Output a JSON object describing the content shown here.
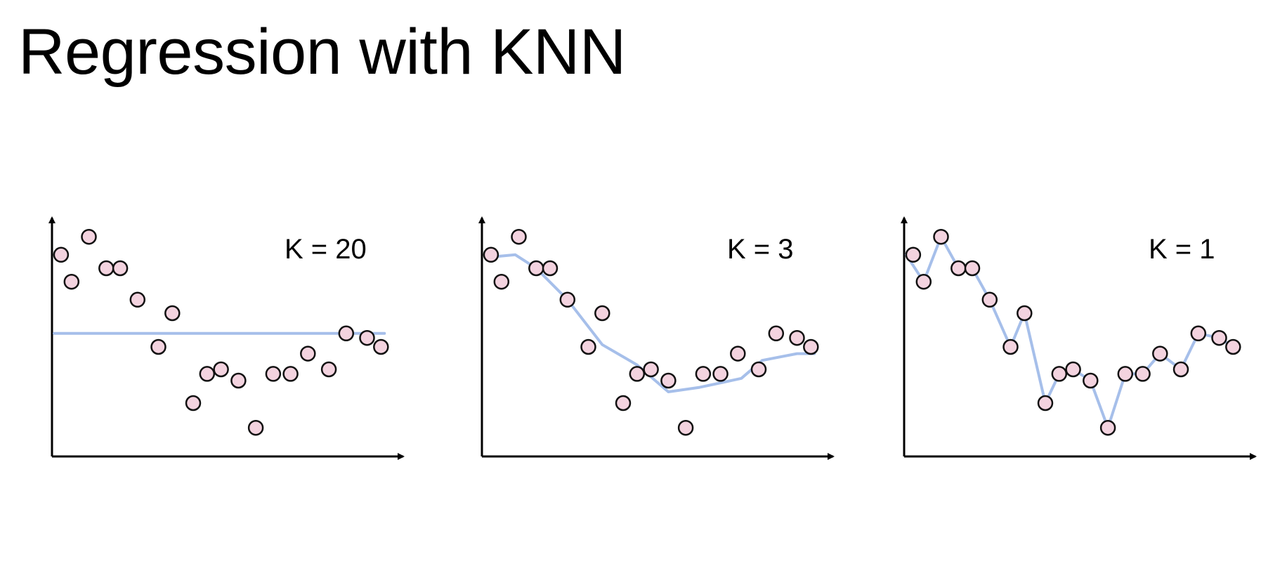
{
  "title": "Regression with KNN",
  "colors": {
    "point_fill": "#f3d3df",
    "point_stroke": "#111111",
    "fit_line": "#a6bfea",
    "axis": "#000000"
  },
  "chart_data": [
    {
      "type": "scatter",
      "title": "",
      "annotation": "K = 20",
      "k": 20,
      "xlim": [
        0,
        100
      ],
      "ylim": [
        0,
        100
      ],
      "points": [
        [
          2,
          86
        ],
        [
          5,
          74
        ],
        [
          10,
          94
        ],
        [
          15,
          80
        ],
        [
          19,
          80
        ],
        [
          24,
          66
        ],
        [
          30,
          45
        ],
        [
          34,
          60
        ],
        [
          40,
          20
        ],
        [
          44,
          33
        ],
        [
          48,
          35
        ],
        [
          53,
          30
        ],
        [
          58,
          9
        ],
        [
          63,
          33
        ],
        [
          68,
          33
        ],
        [
          73,
          42
        ],
        [
          79,
          35
        ],
        [
          84,
          51
        ],
        [
          90,
          49
        ],
        [
          94,
          45
        ]
      ],
      "fit": [
        [
          0,
          51
        ],
        [
          95,
          51
        ]
      ]
    },
    {
      "type": "scatter",
      "title": "",
      "annotation": "K = 3",
      "k": 3,
      "xlim": [
        0,
        100
      ],
      "ylim": [
        0,
        100
      ],
      "points": [
        [
          2,
          86
        ],
        [
          5,
          74
        ],
        [
          10,
          94
        ],
        [
          15,
          80
        ],
        [
          19,
          80
        ],
        [
          24,
          66
        ],
        [
          30,
          45
        ],
        [
          34,
          60
        ],
        [
          40,
          20
        ],
        [
          44,
          33
        ],
        [
          48,
          35
        ],
        [
          53,
          30
        ],
        [
          58,
          9
        ],
        [
          63,
          33
        ],
        [
          68,
          33
        ],
        [
          73,
          42
        ],
        [
          79,
          35
        ],
        [
          84,
          51
        ],
        [
          90,
          49
        ],
        [
          94,
          45
        ]
      ],
      "fit": [
        [
          2,
          85
        ],
        [
          9,
          86
        ],
        [
          15,
          80
        ],
        [
          24,
          66
        ],
        [
          34,
          46
        ],
        [
          44,
          37
        ],
        [
          53,
          25
        ],
        [
          62,
          27
        ],
        [
          74,
          31
        ],
        [
          80,
          39
        ],
        [
          90,
          42
        ],
        [
          95,
          42
        ]
      ]
    },
    {
      "type": "scatter",
      "title": "",
      "annotation": "K = 1",
      "k": 1,
      "xlim": [
        0,
        100
      ],
      "ylim": [
        0,
        100
      ],
      "points": [
        [
          2,
          86
        ],
        [
          5,
          74
        ],
        [
          10,
          94
        ],
        [
          15,
          80
        ],
        [
          19,
          80
        ],
        [
          24,
          66
        ],
        [
          30,
          45
        ],
        [
          34,
          60
        ],
        [
          40,
          20
        ],
        [
          44,
          33
        ],
        [
          48,
          35
        ],
        [
          53,
          30
        ],
        [
          58,
          9
        ],
        [
          63,
          33
        ],
        [
          68,
          33
        ],
        [
          73,
          42
        ],
        [
          79,
          35
        ],
        [
          84,
          51
        ],
        [
          90,
          49
        ],
        [
          94,
          45
        ]
      ],
      "fit": [
        [
          0,
          86
        ],
        [
          5,
          74
        ],
        [
          10,
          94
        ],
        [
          15,
          80
        ],
        [
          19,
          80
        ],
        [
          24,
          66
        ],
        [
          30,
          45
        ],
        [
          34,
          60
        ],
        [
          40,
          20
        ],
        [
          44,
          33
        ],
        [
          48,
          35
        ],
        [
          53,
          30
        ],
        [
          58,
          9
        ],
        [
          63,
          33
        ],
        [
          68,
          33
        ],
        [
          73,
          42
        ],
        [
          79,
          35
        ],
        [
          84,
          51
        ],
        [
          90,
          49
        ],
        [
          94,
          45
        ]
      ]
    }
  ]
}
